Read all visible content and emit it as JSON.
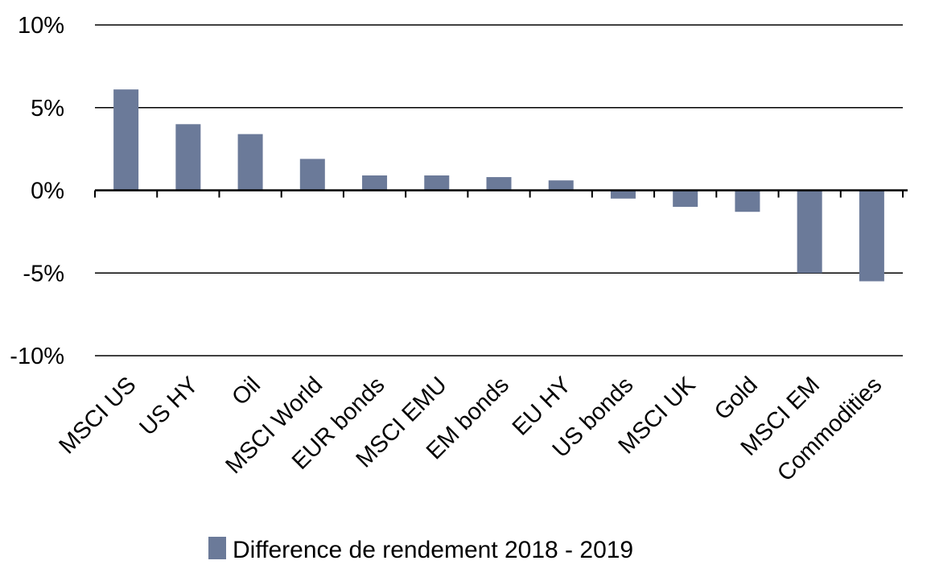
{
  "chart_data": {
    "type": "bar",
    "categories": [
      "MSCI US",
      "US HY",
      "Oil",
      "MSCI World",
      "EUR bonds",
      "MSCI EMU",
      "EM bonds",
      "EU HY",
      "US bonds",
      "MSCI UK",
      "Gold",
      "MSCI EM",
      "Commodities"
    ],
    "series": [
      {
        "name": "Difference de rendement 2018 - 2019",
        "values": [
          6.1,
          4.0,
          3.4,
          1.9,
          0.9,
          0.9,
          0.8,
          0.6,
          -0.5,
          -1.0,
          -1.3,
          -5.0,
          -5.5
        ],
        "color": "#6b7a99"
      }
    ],
    "yticks": [
      10,
      5,
      0,
      -5,
      -10
    ],
    "ytick_labels": [
      "10%",
      "5%",
      "0%",
      "-5%",
      "-10%"
    ],
    "ylim": [
      -10,
      10
    ],
    "grid": true,
    "legend": "bottom"
  }
}
